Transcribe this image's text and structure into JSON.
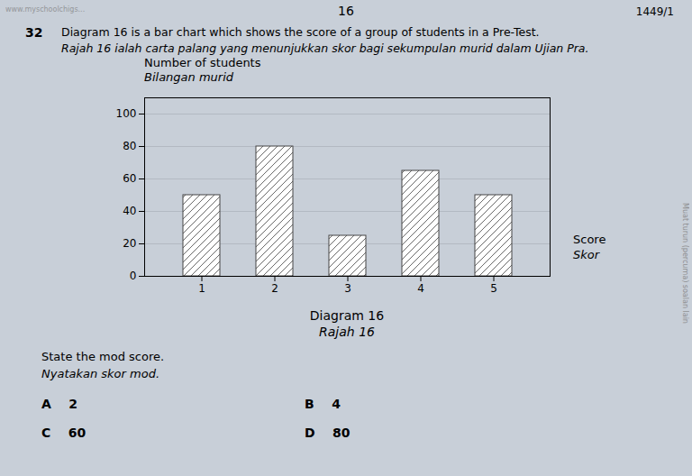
{
  "chart_data": {
    "type": "bar",
    "title": "Diagram 16",
    "subtitle": "Rajah 16",
    "xlabel": [
      "Score",
      "Skor"
    ],
    "ylabel": [
      "Number of students",
      "Bilangan murid"
    ],
    "categories": [
      "1",
      "2",
      "3",
      "4",
      "5"
    ],
    "values": [
      50,
      80,
      25,
      65,
      50
    ],
    "color": "white",
    "ylim": [
      0,
      110
    ],
    "yticks": [
      0,
      20,
      40,
      60,
      80,
      100
    ],
    "grid": true,
    "annotations": [
      "16",
      "1449/1",
      "www.myschoolchigs...",
      "32",
      "Diagram 16 is a bar chart which shows the score of a group of students in a Pre-Test.",
      "Rajah 16 ialah carta palang yang menunjukkan skor bagi sekumpulan murid dalam Ujian Pra.",
      "State the mod score.",
      "Nyatakan skor mod.",
      "A    2",
      "B    4",
      "C    60",
      "D    80",
      "Muat turun (percuma) soalan lain"
    ]
  }
}
